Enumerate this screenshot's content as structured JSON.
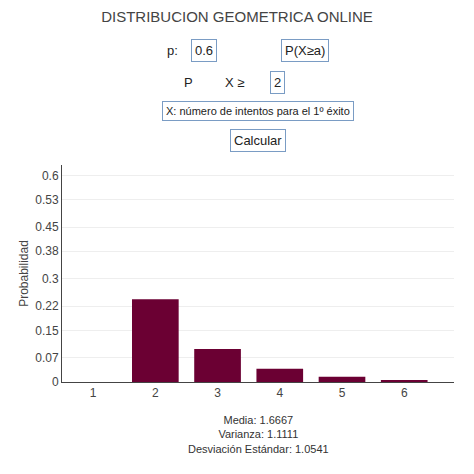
{
  "chart_data": {
    "type": "bar",
    "title": "DISTRIBUCION GEOMETRICA ONLINE",
    "x": [
      2,
      3,
      4,
      5,
      6
    ],
    "values": [
      0.24,
      0.096,
      0.0384,
      0.01536,
      0.006144
    ],
    "color": "#6B0033",
    "ylabel": "Probabilidad",
    "xlim": [
      0.5,
      6.8
    ],
    "xticks": [
      1,
      2,
      3,
      4,
      5,
      6
    ],
    "ylim": [
      0,
      0.63
    ],
    "yticks": [
      0,
      0.07,
      0.15,
      0.22,
      0.3,
      0.38,
      0.45,
      0.53,
      0.6
    ],
    "grid": true,
    "annotations": [
      "p:",
      "0.6",
      "P(X≥a)",
      "P",
      "X ≥",
      "2",
      "X: número de intentos para el 1º éxito",
      "Calcular",
      "Media: 1.6667\nVarianza: 1.1111\nDesviación Estándar: 1.0541"
    ]
  }
}
